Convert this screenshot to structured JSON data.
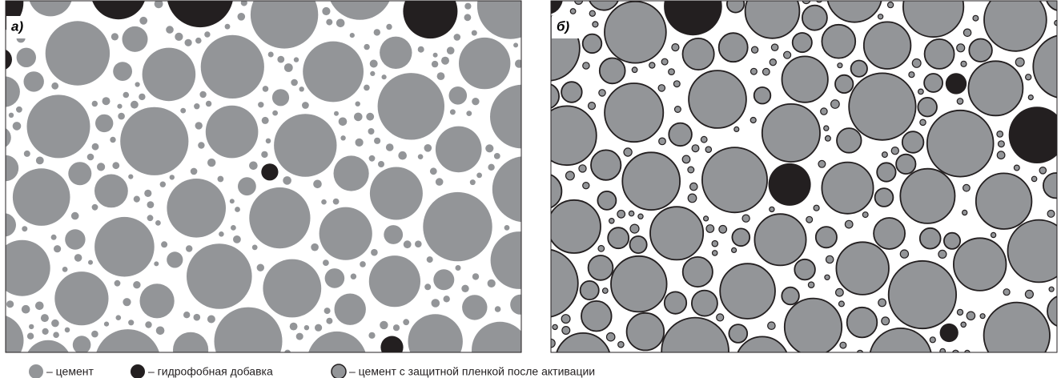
{
  "panels": [
    {
      "label": "а)"
    },
    {
      "label": "б)"
    }
  ],
  "legend": [
    {
      "label": "– цемент"
    },
    {
      "label": "– гидрофобная добавка"
    },
    {
      "label": "– цемент с защитной пленкой после активации"
    }
  ]
}
